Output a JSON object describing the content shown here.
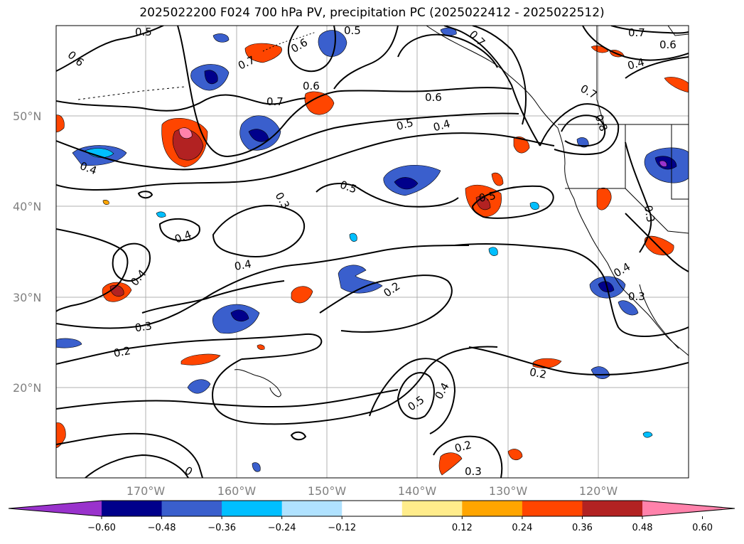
{
  "title": "2025022200 F024 700 hPa PV, precipitation PC (2025022412 - 2025022512)",
  "lat_labels": [
    "50°N",
    "40°N",
    "30°N",
    "20°N"
  ],
  "lon_labels": [
    "170°W",
    "160°W",
    "150°W",
    "140°W",
    "130°W",
    "120°W"
  ],
  "contour_labels": {
    "c1": "0.5",
    "c2": "0.6",
    "c3": "0.7",
    "c4": "0.5",
    "c5": "0.6",
    "c6": "0.7",
    "c7": "0.6",
    "c8": "0.5",
    "c9": "0.4",
    "c10": "0.7",
    "c11": "0.6",
    "c12": "0.4",
    "c13": "0.4",
    "c14": "0.5",
    "c15": "0.3",
    "c16": "0.4",
    "c17": "0.5",
    "c18": "0.4",
    "c19": "0.4",
    "c20": "0.2",
    "c21": "0.3",
    "c22": "0.2",
    "c23": "0.2",
    "c24": "0.5",
    "c25": "0.4",
    "c26": "0.2",
    "c27": "0.3",
    "c28": "0.4",
    "c29": "0.3",
    "c30": "0.3",
    "c31": "0.7",
    "c32": "0.8",
    "c33": "0",
    "c34": "0.7",
    "c35": "0.6"
  },
  "colorbar": {
    "ticks": [
      "−0.60",
      "−0.48",
      "−0.36",
      "−0.24",
      "−0.12",
      "0.12",
      "0.24",
      "0.36",
      "0.48",
      "0.60"
    ],
    "colors": [
      "#9932cc",
      "#00008b",
      "#3a5fcd",
      "#00bfff",
      "#b0e2ff",
      "#ffffff",
      "#ffec8b",
      "#ffa500",
      "#ff4500",
      "#b22222",
      "#ff82ab"
    ]
  }
}
